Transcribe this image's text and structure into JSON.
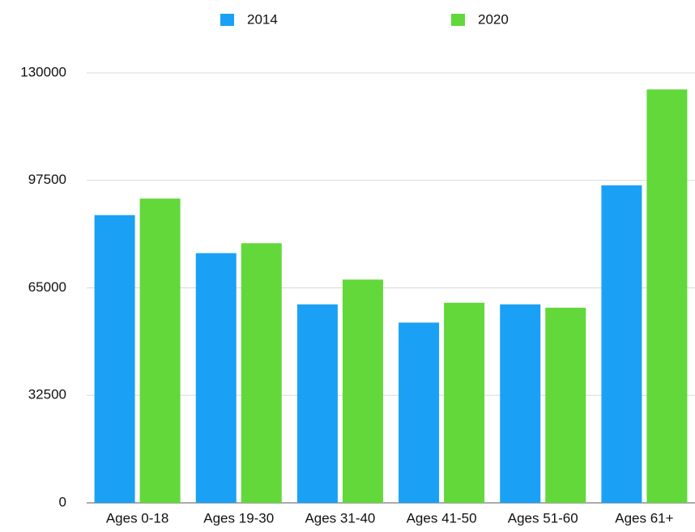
{
  "chart_data": {
    "type": "bar",
    "categories": [
      "Ages 0-18",
      "Ages 19-30",
      "Ages 31-40",
      "Ages 41-50",
      "Ages 51-60",
      "Ages 61+"
    ],
    "series": [
      {
        "name": "2014",
        "color": "#1aa1f5",
        "values": [
          87000,
          75500,
          60000,
          54500,
          60000,
          96000
        ]
      },
      {
        "name": "2020",
        "color": "#62d83a",
        "values": [
          92000,
          78500,
          67500,
          60500,
          59000,
          125000
        ]
      }
    ],
    "ylim": [
      0,
      130000
    ],
    "yticks": [
      0,
      32500,
      65000,
      97500,
      130000
    ],
    "grid": true,
    "legend": "top"
  }
}
